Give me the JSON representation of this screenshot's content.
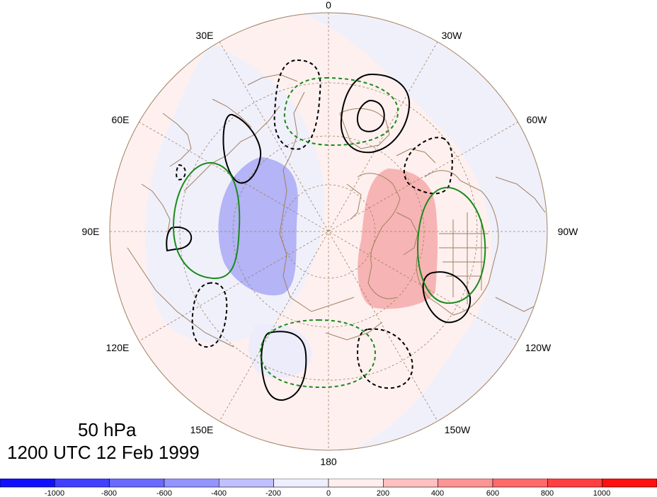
{
  "title": {
    "level": "50 hPa",
    "time": "1200 UTC 12 Feb 1999"
  },
  "map": {
    "projection": "north-polar-stereographic",
    "longitude_labels": [
      "0",
      "30W",
      "60W",
      "90W",
      "120W",
      "150W",
      "180",
      "150E",
      "120E",
      "90E",
      "60E",
      "30E"
    ],
    "colors": {
      "coastline": "#a08060",
      "grid": "#a08060",
      "contour_positive": "#000000",
      "contour_green": "#1a8a1a"
    }
  },
  "colorbar": {
    "tick_labels": [
      "-1000",
      "-800",
      "-600",
      "-400",
      "-200",
      "0",
      "200",
      "400",
      "600",
      "800",
      "1000"
    ],
    "colors": [
      "#1010ff",
      "#4040ff",
      "#6a6aff",
      "#9494ff",
      "#c0c0ff",
      "#eeeeff",
      "#ffeeee",
      "#ffc0c0",
      "#ff9494",
      "#ff6a6a",
      "#ff4040",
      "#ff1010"
    ]
  }
}
